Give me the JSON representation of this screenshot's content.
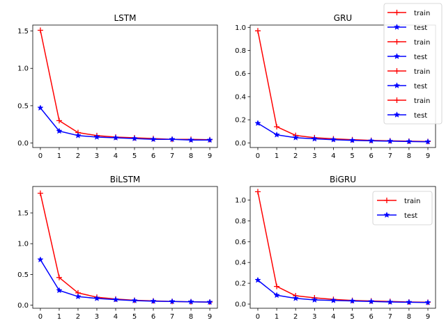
{
  "chart_data": [
    {
      "type": "line",
      "title": "LSTM",
      "x": [
        0,
        1,
        2,
        3,
        4,
        5,
        6,
        7,
        8,
        9
      ],
      "ylim": [
        -0.06,
        1.58
      ],
      "yticks": [
        "0.0",
        "0.5",
        "1.0",
        "1.5"
      ],
      "series": [
        {
          "name": "train",
          "color": "#ff0000",
          "marker": "+",
          "values": [
            1.51,
            0.3,
            0.14,
            0.1,
            0.08,
            0.07,
            0.06,
            0.05,
            0.05,
            0.045
          ]
        },
        {
          "name": "test",
          "color": "#0000ff",
          "marker": "star",
          "values": [
            0.47,
            0.16,
            0.1,
            0.08,
            0.07,
            0.06,
            0.05,
            0.05,
            0.04,
            0.04
          ]
        }
      ]
    },
    {
      "type": "line",
      "title": "GRU",
      "x": [
        0,
        1,
        2,
        3,
        4,
        5,
        6,
        7,
        8,
        9
      ],
      "ylim": [
        -0.04,
        1.02
      ],
      "yticks": [
        "0.0",
        "0.2",
        "0.4",
        "0.6",
        "0.8",
        "1.0"
      ],
      "series": [
        {
          "name": "train",
          "color": "#ff0000",
          "marker": "+",
          "values": [
            0.97,
            0.14,
            0.065,
            0.045,
            0.035,
            0.028,
            0.022,
            0.018,
            0.015,
            0.012
          ]
        },
        {
          "name": "test",
          "color": "#0000ff",
          "marker": "star",
          "values": [
            0.17,
            0.07,
            0.045,
            0.035,
            0.028,
            0.022,
            0.018,
            0.015,
            0.012,
            0.01
          ]
        }
      ]
    },
    {
      "type": "line",
      "title": "BiLSTM",
      "x": [
        0,
        1,
        2,
        3,
        4,
        5,
        6,
        7,
        8,
        9
      ],
      "ylim": [
        -0.05,
        1.93
      ],
      "yticks": [
        "0.0",
        "0.5",
        "1.0",
        "1.5"
      ],
      "series": [
        {
          "name": "train",
          "color": "#ff0000",
          "marker": "+",
          "values": [
            1.82,
            0.45,
            0.2,
            0.13,
            0.1,
            0.08,
            0.07,
            0.06,
            0.055,
            0.05
          ]
        },
        {
          "name": "test",
          "color": "#0000ff",
          "marker": "star",
          "values": [
            0.74,
            0.24,
            0.14,
            0.11,
            0.09,
            0.075,
            0.065,
            0.06,
            0.055,
            0.05
          ]
        }
      ]
    },
    {
      "type": "line",
      "title": "BiGRU",
      "x": [
        0,
        1,
        2,
        3,
        4,
        5,
        6,
        7,
        8,
        9
      ],
      "ylim": [
        -0.04,
        1.13
      ],
      "yticks": [
        "0.0",
        "0.2",
        "0.4",
        "0.6",
        "0.8",
        "1.0"
      ],
      "series": [
        {
          "name": "train",
          "color": "#ff0000",
          "marker": "+",
          "values": [
            1.08,
            0.17,
            0.08,
            0.06,
            0.045,
            0.035,
            0.03,
            0.025,
            0.02,
            0.018
          ]
        },
        {
          "name": "test",
          "color": "#0000ff",
          "marker": "star",
          "values": [
            0.23,
            0.085,
            0.055,
            0.04,
            0.035,
            0.03,
            0.025,
            0.02,
            0.018,
            0.015
          ]
        }
      ]
    }
  ],
  "subplot_legend": {
    "placement": "upper right",
    "entries": [
      {
        "label": "train",
        "color": "#ff0000",
        "marker": "+"
      },
      {
        "label": "test",
        "color": "#0000ff",
        "marker": "star"
      }
    ]
  },
  "figure_legend": {
    "placement": "top-right",
    "entries": [
      {
        "label": "train",
        "color": "#ff0000",
        "marker": "+"
      },
      {
        "label": "test",
        "color": "#0000ff",
        "marker": "star"
      },
      {
        "label": "train",
        "color": "#ff0000",
        "marker": "+"
      },
      {
        "label": "test",
        "color": "#0000ff",
        "marker": "star"
      },
      {
        "label": "train",
        "color": "#ff0000",
        "marker": "+"
      },
      {
        "label": "test",
        "color": "#0000ff",
        "marker": "star"
      },
      {
        "label": "train",
        "color": "#ff0000",
        "marker": "+"
      },
      {
        "label": "test",
        "color": "#0000ff",
        "marker": "star"
      }
    ]
  }
}
